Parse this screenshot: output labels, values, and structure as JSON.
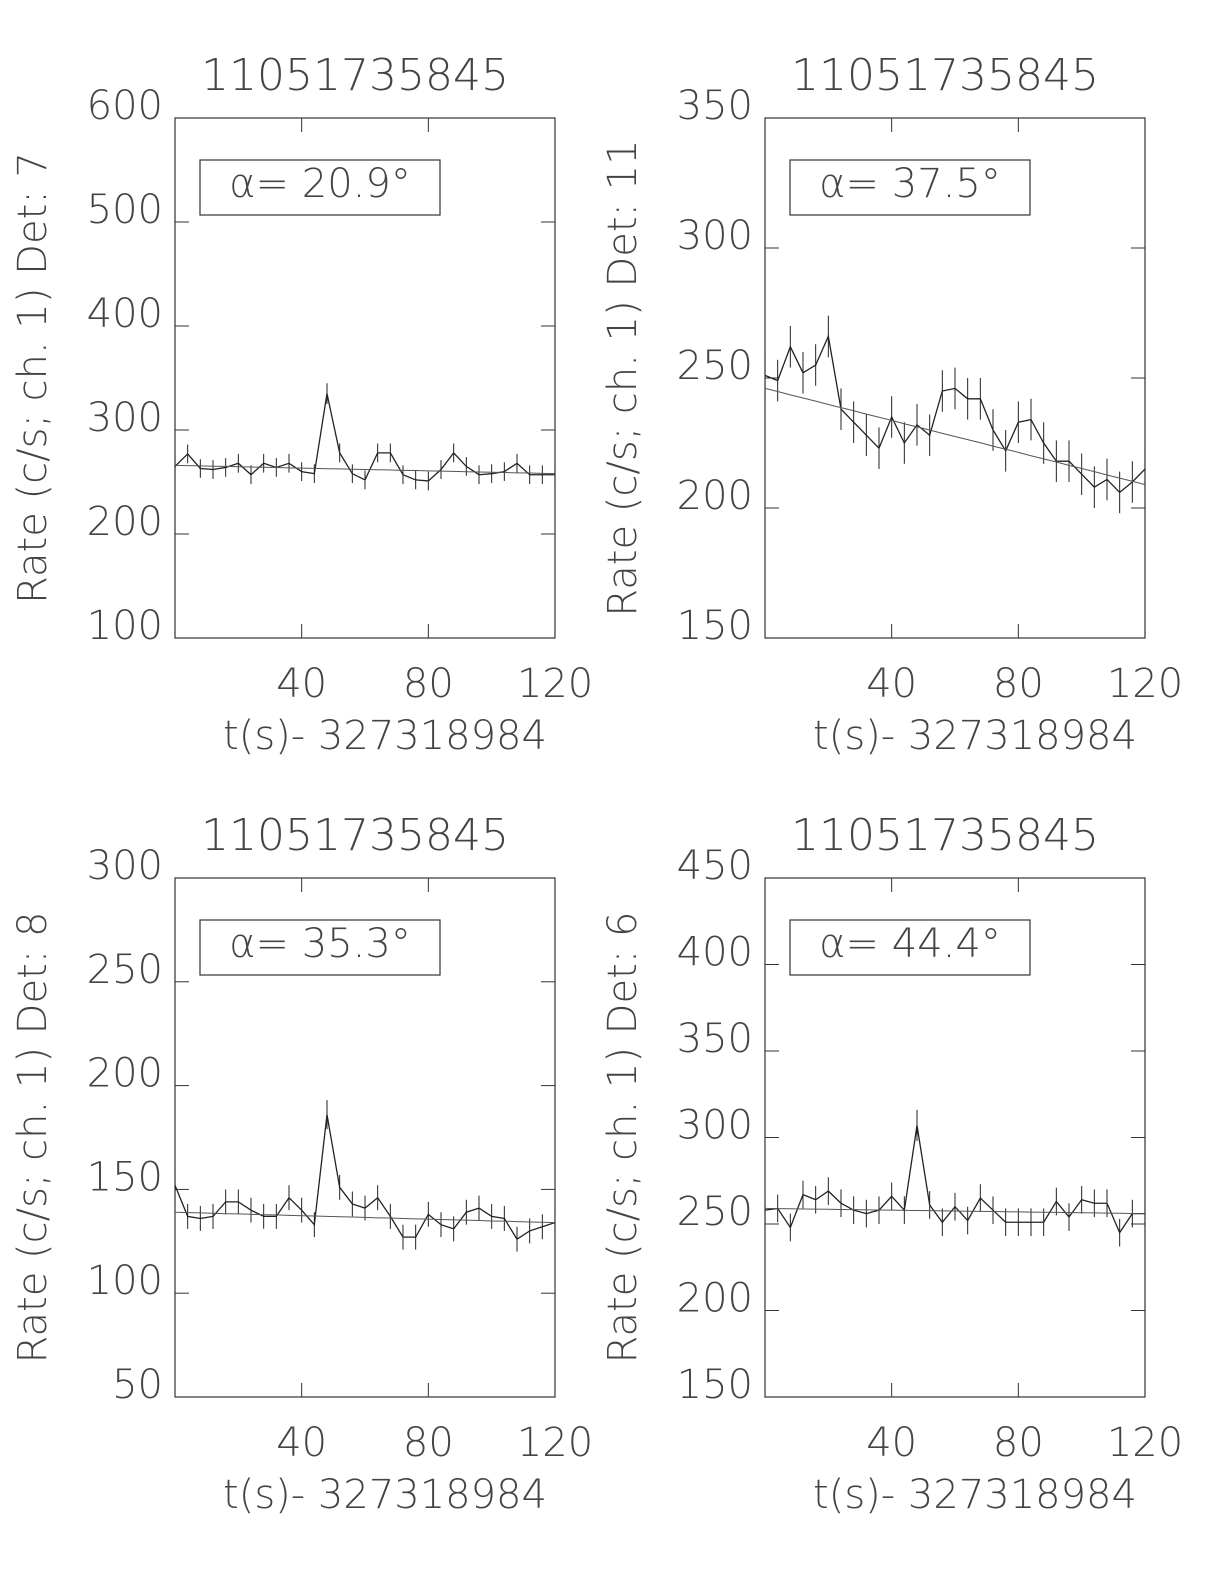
{
  "chart_data": [
    {
      "type": "line",
      "title": "11051735845",
      "ylabel": "Rate (c/s; ch. 1) Det: 7",
      "xlabel": "t(s)- 327318984",
      "annotation": "α= 20.9°",
      "x": [
        0,
        4,
        8,
        12,
        16,
        20,
        24,
        28,
        32,
        36,
        40,
        44,
        48,
        52,
        56,
        60,
        64,
        68,
        72,
        76,
        80,
        84,
        88,
        92,
        96,
        100,
        104,
        108,
        112,
        116,
        120
      ],
      "values": [
        265,
        277,
        263,
        262,
        264,
        268,
        257,
        268,
        264,
        268,
        260,
        258,
        335,
        278,
        258,
        252,
        278,
        278,
        257,
        252,
        251,
        262,
        278,
        265,
        257,
        258,
        260,
        268,
        257,
        257,
        257
      ],
      "errors": [
        9,
        9,
        9,
        9,
        9,
        9,
        9,
        9,
        9,
        9,
        9,
        9,
        10,
        9,
        9,
        9,
        9,
        9,
        9,
        9,
        9,
        9,
        9,
        9,
        9,
        9,
        9,
        9,
        9,
        9,
        9
      ],
      "fit": [
        266,
        265.7,
        265.5,
        265.2,
        265,
        264.7,
        264.4,
        264.2,
        263.9,
        263.6,
        263.4,
        263.1,
        262.8,
        262.6,
        262.3,
        262,
        261.8,
        261.5,
        261.2,
        261,
        260.7,
        260.4,
        260.2,
        259.9,
        259.6,
        259.4,
        259.1,
        258.8,
        258.6,
        258.3,
        258
      ],
      "xlim": [
        0,
        120
      ],
      "xticks": [
        40,
        80,
        120
      ],
      "ylim": [
        100,
        600
      ],
      "yticks": [
        100,
        200,
        300,
        400,
        500,
        600
      ],
      "color": "#222222"
    },
    {
      "type": "line",
      "title": "11051735845",
      "ylabel": "Rate (c/s; ch. 1) Det: 11",
      "xlabel": "t(s)- 327318984",
      "annotation": "α= 37.5°",
      "x": [
        0,
        4,
        8,
        12,
        16,
        20,
        24,
        28,
        32,
        36,
        40,
        44,
        48,
        52,
        56,
        60,
        64,
        68,
        72,
        76,
        80,
        84,
        88,
        92,
        96,
        100,
        104,
        108,
        112,
        116,
        120
      ],
      "values": [
        251,
        249,
        262,
        252,
        255,
        266,
        238,
        233,
        228,
        223,
        235,
        225,
        232,
        228,
        245,
        246,
        242,
        242,
        230,
        222,
        233,
        234,
        225,
        218,
        218,
        213,
        208,
        211,
        206,
        210,
        215
      ],
      "errors": [
        8,
        8,
        8,
        8,
        8,
        8,
        8,
        8,
        8,
        8,
        8,
        8,
        8,
        8,
        8,
        8,
        8,
        8,
        8,
        8,
        8,
        8,
        8,
        8,
        8,
        8,
        8,
        8,
        8,
        8,
        8
      ],
      "fit": [
        246,
        244.8,
        243.5,
        242.3,
        241.1,
        239.8,
        238.6,
        237.4,
        236.1,
        234.9,
        233.7,
        232.4,
        231.2,
        230,
        228.7,
        227.5,
        226.3,
        225.1,
        223.8,
        222.6,
        221.4,
        220.1,
        218.9,
        217.7,
        216.4,
        215.2,
        214,
        212.7,
        211.5,
        210.3,
        209
      ],
      "xlim": [
        0,
        120
      ],
      "xticks": [
        40,
        80,
        120
      ],
      "ylim": [
        150,
        350
      ],
      "yticks": [
        150,
        200,
        250,
        300,
        350
      ],
      "color": "#222222"
    },
    {
      "type": "line",
      "title": "11051735845",
      "ylabel": "Rate (c/s; ch. 1) Det: 8",
      "xlabel": "t(s)- 327318984",
      "annotation": "α= 35.3°",
      "x": [
        0,
        4,
        8,
        12,
        16,
        20,
        24,
        28,
        32,
        36,
        40,
        44,
        48,
        52,
        56,
        60,
        64,
        68,
        72,
        76,
        80,
        84,
        88,
        92,
        96,
        100,
        104,
        108,
        112,
        116,
        120
      ],
      "values": [
        152,
        137,
        136,
        137,
        144,
        144,
        140,
        137,
        137,
        146,
        140,
        133,
        186,
        151,
        143,
        141,
        146,
        137,
        127,
        127,
        138,
        133,
        131,
        139,
        141,
        137,
        136,
        126,
        130,
        132,
        134
      ],
      "errors": [
        6,
        6,
        6,
        6,
        6,
        6,
        6,
        6,
        6,
        6,
        6,
        6,
        7,
        6,
        6,
        6,
        6,
        6,
        6,
        6,
        6,
        6,
        6,
        6,
        6,
        6,
        6,
        6,
        6,
        6,
        6
      ],
      "fit": [
        139,
        138.8,
        138.7,
        138.5,
        138.3,
        138.2,
        138,
        137.8,
        137.7,
        137.5,
        137.3,
        137.2,
        137,
        136.8,
        136.7,
        136.5,
        136.3,
        136.2,
        136,
        135.8,
        135.7,
        135.5,
        135.3,
        135.2,
        135,
        134.8,
        134.7,
        134.5,
        134.3,
        134.2,
        134
      ],
      "xlim": [
        0,
        120
      ],
      "xticks": [
        40,
        80,
        120
      ],
      "ylim": [
        50,
        300
      ],
      "yticks": [
        50,
        100,
        150,
        200,
        250,
        300
      ],
      "color": "#222222"
    },
    {
      "type": "line",
      "title": "11051735845",
      "ylabel": "Rate (c/s; ch. 1) Det: 6",
      "xlabel": "t(s)- 327318984",
      "annotation": "α= 44.4°",
      "x": [
        0,
        4,
        8,
        12,
        16,
        20,
        24,
        28,
        32,
        36,
        40,
        44,
        48,
        52,
        56,
        60,
        64,
        68,
        72,
        76,
        80,
        84,
        88,
        92,
        96,
        100,
        104,
        108,
        112,
        116,
        120
      ],
      "values": [
        258,
        259,
        248,
        267,
        264,
        269,
        262,
        258,
        256,
        258,
        266,
        258,
        307,
        261,
        251,
        260,
        252,
        265,
        258,
        251,
        251,
        251,
        251,
        263,
        254,
        264,
        262,
        262,
        245,
        256,
        256
      ],
      "errors": [
        8,
        8,
        8,
        8,
        8,
        8,
        8,
        8,
        8,
        8,
        8,
        8,
        9,
        8,
        8,
        8,
        8,
        8,
        8,
        8,
        8,
        8,
        8,
        8,
        8,
        8,
        8,
        8,
        8,
        8,
        8
      ],
      "fit": [
        259,
        258.9,
        258.8,
        258.7,
        258.6,
        258.5,
        258.4,
        258.3,
        258.2,
        258.1,
        258,
        257.9,
        257.8,
        257.7,
        257.6,
        257.5,
        257.4,
        257.3,
        257.2,
        257.1,
        257,
        256.9,
        256.8,
        256.7,
        256.6,
        256.5,
        256.4,
        256.3,
        256.2,
        256.1,
        256
      ],
      "xlim": [
        0,
        120
      ],
      "xticks": [
        40,
        80,
        120
      ],
      "ylim": [
        150,
        450
      ],
      "yticks": [
        150,
        200,
        250,
        300,
        350,
        400,
        450
      ],
      "color": "#222222"
    }
  ]
}
